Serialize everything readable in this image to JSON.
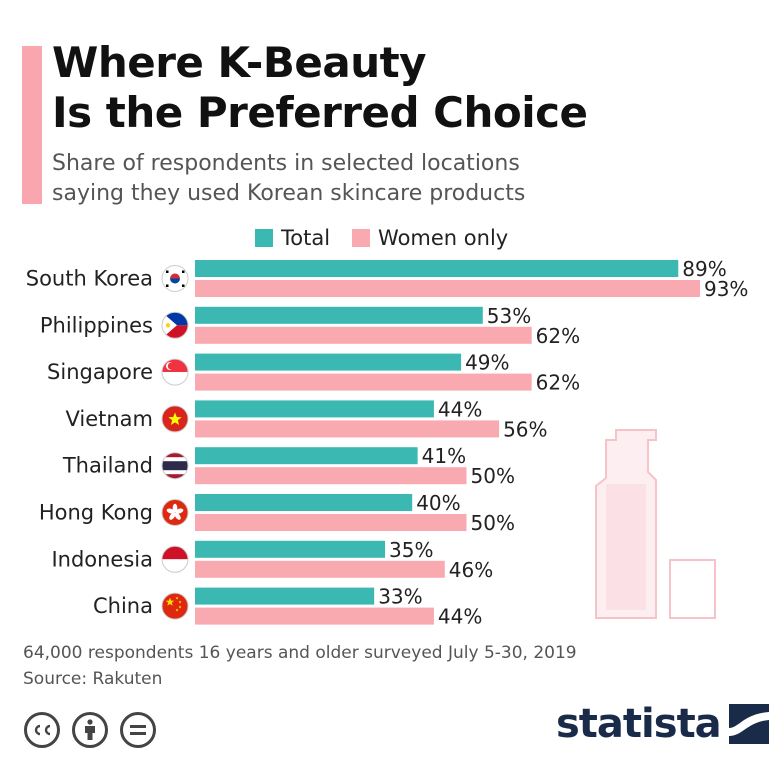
{
  "title_lines": [
    "Where K-Beauty",
    "Is the Preferred Choice"
  ],
  "subtitle_lines": [
    "Share of respondents in selected locations",
    "saying they used Korean skincare products"
  ],
  "colors": {
    "total": "#3cb8b2",
    "women": "#f9aab1",
    "accent": "#f9a6ae",
    "brand": "#1a2b4a"
  },
  "footnote": {
    "line1": "64,000 respondents 16 years and older surveyed July 5-30, 2019",
    "line2": "Source: Rakuten"
  },
  "brand": {
    "name": "statista"
  },
  "license_icons": [
    "cc-icon",
    "attribution-icon",
    "no-derivatives-icon"
  ],
  "chart_data": {
    "type": "bar",
    "orientation": "horizontal",
    "title": "Where K-Beauty Is the Preferred Choice",
    "categories": [
      "South Korea",
      "Philippines",
      "Singapore",
      "Vietnam",
      "Thailand",
      "Hong Kong",
      "Indonesia",
      "China"
    ],
    "flags": [
      "south-korea-flag-icon",
      "philippines-flag-icon",
      "singapore-flag-icon",
      "vietnam-flag-icon",
      "thailand-flag-icon",
      "hong-kong-flag-icon",
      "indonesia-flag-icon",
      "china-flag-icon"
    ],
    "series": [
      {
        "name": "Total",
        "values": [
          89,
          53,
          49,
          44,
          41,
          40,
          35,
          33
        ]
      },
      {
        "name": "Women only",
        "values": [
          93,
          62,
          62,
          56,
          50,
          50,
          46,
          44
        ]
      }
    ],
    "value_suffix": "%",
    "xlim": [
      0,
      100
    ],
    "legend_position": "top"
  }
}
